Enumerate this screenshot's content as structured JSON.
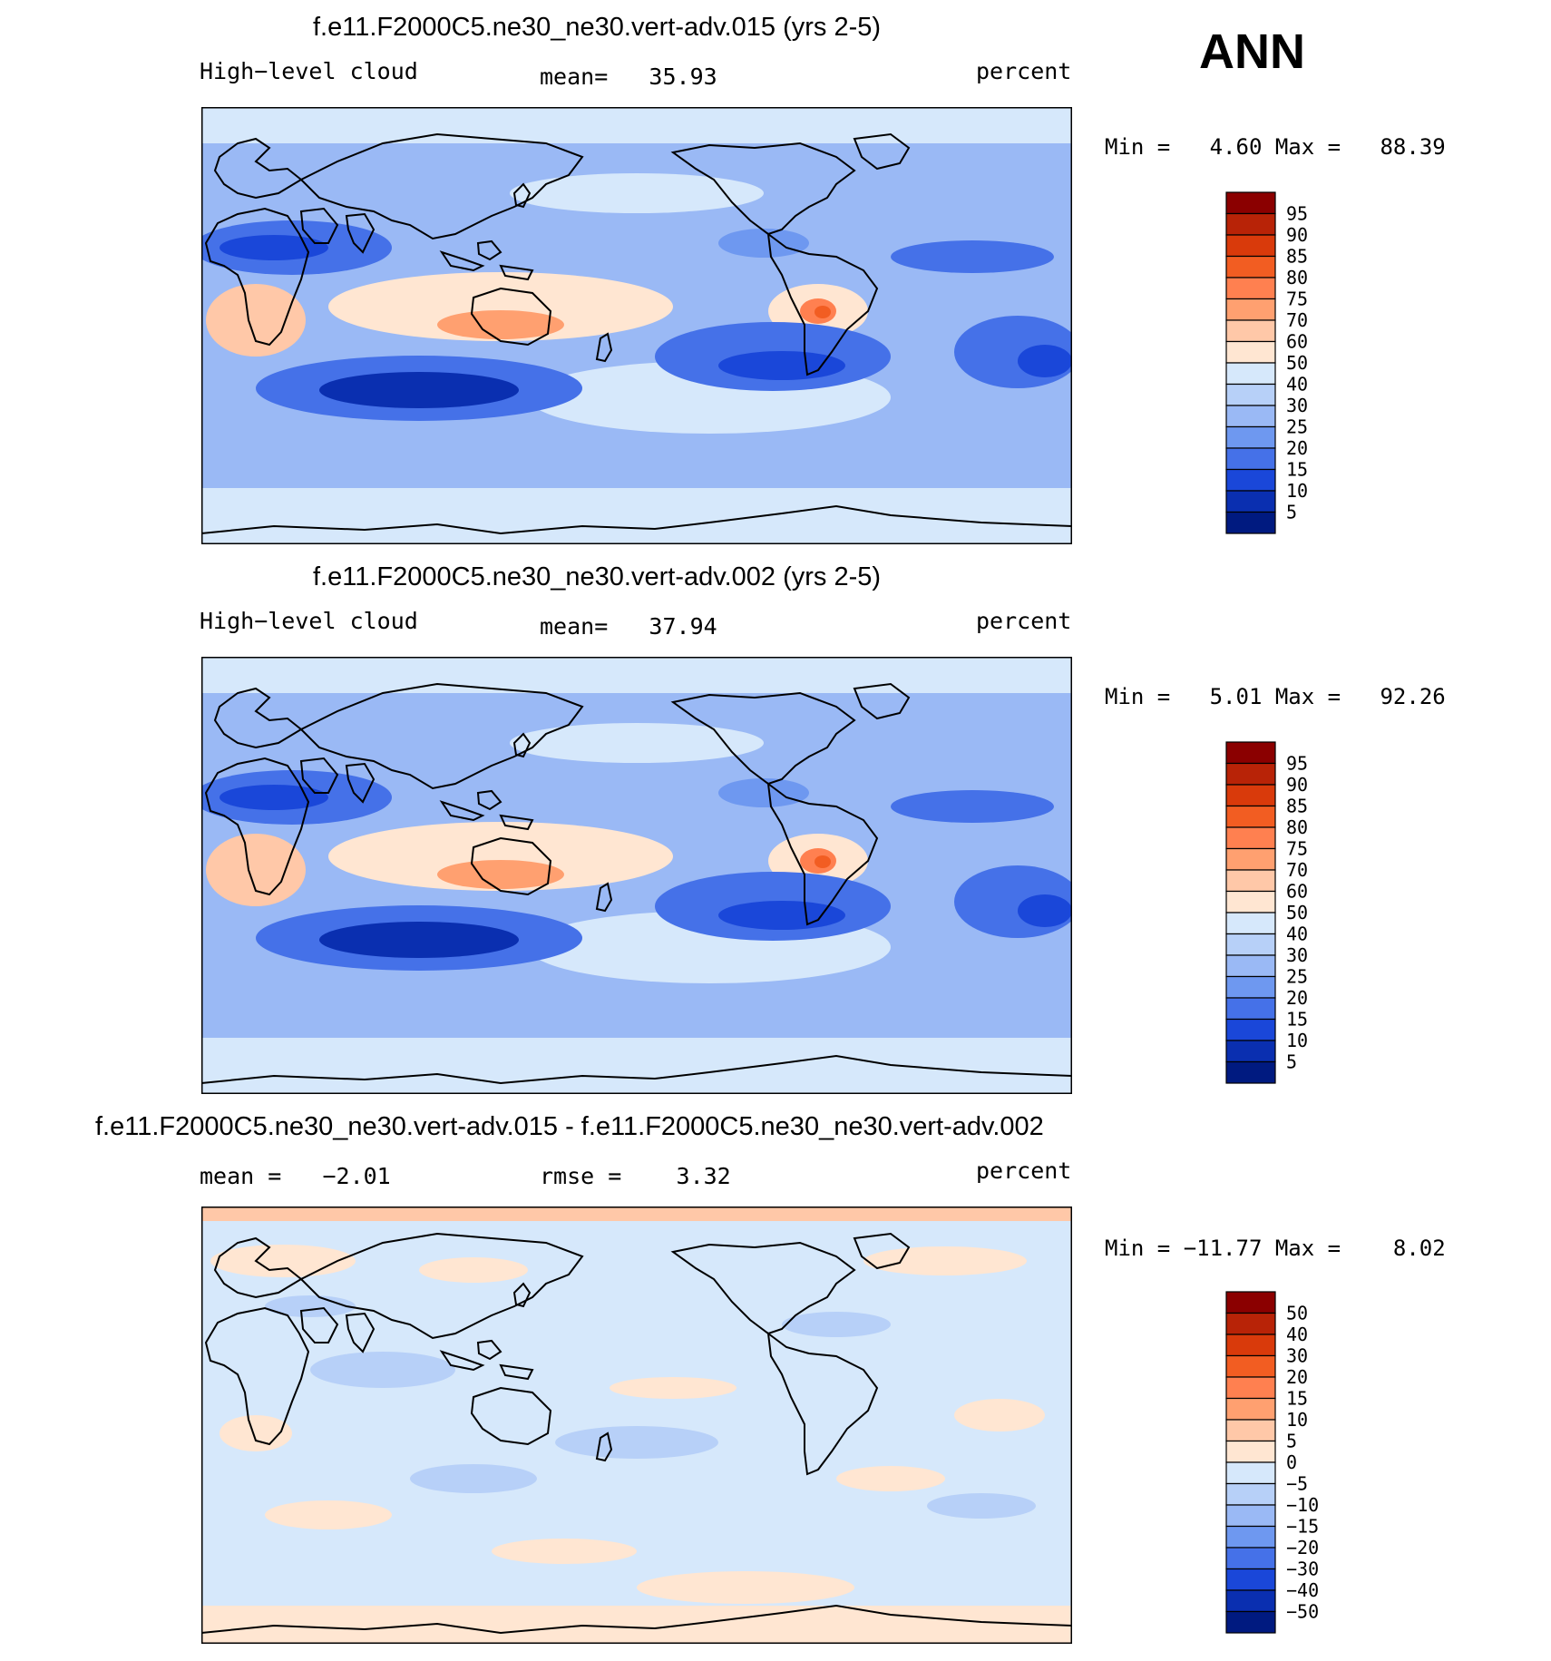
{
  "season": "ANN",
  "panels": [
    {
      "title": "f.e11.F2000C5.ne30_ne30.vert-adv.015 (yrs 2-5)",
      "left_label": "High−level cloud",
      "center_label": "mean=   35.93",
      "units": "percent",
      "min_label": "Min =",
      "min_value": "4.60",
      "max_label": "Max =",
      "max_value": "88.39",
      "levels": [
        "95",
        "90",
        "85",
        "80",
        "75",
        "70",
        "60",
        "50",
        "40",
        "30",
        "25",
        "20",
        "15",
        "10",
        "5"
      ],
      "colors": [
        "#8b0000",
        "#b82307",
        "#d93a0b",
        "#f25d22",
        "#ff8050",
        "#ffa070",
        "#ffc8a8",
        "#ffe6d2",
        "#d6e8fb",
        "#b7d0f8",
        "#9ab9f5",
        "#6e98f0",
        "#4571e8",
        "#1a47d9",
        "#0a2fb0",
        "#001a80"
      ],
      "map_scale": "abs"
    },
    {
      "title": "f.e11.F2000C5.ne30_ne30.vert-adv.002 (yrs 2-5)",
      "left_label": "High−level cloud",
      "center_label": "mean=   37.94",
      "units": "percent",
      "min_label": "Min =",
      "min_value": "5.01",
      "max_label": "Max =",
      "max_value": "92.26",
      "levels": [
        "95",
        "90",
        "85",
        "80",
        "75",
        "70",
        "60",
        "50",
        "40",
        "30",
        "25",
        "20",
        "15",
        "10",
        "5"
      ],
      "colors": [
        "#8b0000",
        "#b82307",
        "#d93a0b",
        "#f25d22",
        "#ff8050",
        "#ffa070",
        "#ffc8a8",
        "#ffe6d2",
        "#d6e8fb",
        "#b7d0f8",
        "#9ab9f5",
        "#6e98f0",
        "#4571e8",
        "#1a47d9",
        "#0a2fb0",
        "#001a80"
      ],
      "map_scale": "abs"
    },
    {
      "title": "f.e11.F2000C5.ne30_ne30.vert-adv.015 - f.e11.F2000C5.ne30_ne30.vert-adv.002",
      "left_label": "mean =   −2.01",
      "center_label": "rmse =    3.32",
      "units": "percent",
      "min_label": "Min =",
      "min_value": "−11.77",
      "max_label": "Max =",
      "max_value": "8.02",
      "levels": [
        "50",
        "40",
        "30",
        "20",
        "15",
        "10",
        "5",
        "0",
        "−5",
        "−10",
        "−15",
        "−20",
        "−30",
        "−40",
        "−50"
      ],
      "colors": [
        "#8b0000",
        "#b82307",
        "#d93a0b",
        "#f25d22",
        "#ff8050",
        "#ffa070",
        "#ffc8a8",
        "#ffe6d2",
        "#d6e8fb",
        "#b7d0f8",
        "#9ab9f5",
        "#6e98f0",
        "#4571e8",
        "#1a47d9",
        "#0a2fb0",
        "#001a80"
      ],
      "map_scale": "diff"
    }
  ]
}
